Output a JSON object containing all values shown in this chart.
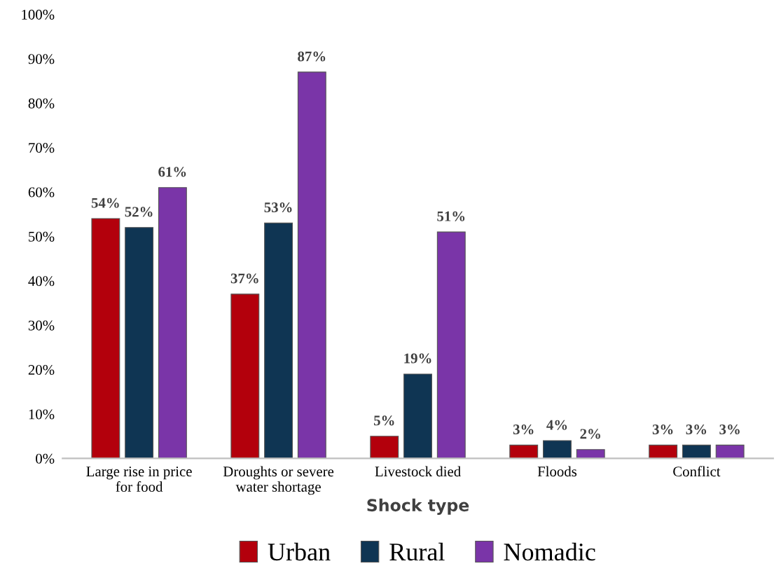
{
  "chart_data": {
    "type": "bar",
    "xlabel": "Shock type",
    "categories": [
      "Large rise in price\nfor food",
      "Droughts or severe\nwater shortage",
      "Livestock died",
      "Floods",
      "Conflict"
    ],
    "series": [
      {
        "name": "Urban",
        "color": "#b3000c",
        "values": [
          54,
          37,
          5,
          3,
          3
        ],
        "value_labels": [
          "54%",
          "37%",
          "5%",
          "3%",
          "3%"
        ]
      },
      {
        "name": "Rural",
        "color": "#0f3553",
        "values": [
          52,
          53,
          19,
          4,
          3
        ],
        "value_labels": [
          "52%",
          "53%",
          "19%",
          "4%",
          "3%"
        ]
      },
      {
        "name": "Nomadic",
        "color": "#7a35a8",
        "values": [
          61,
          87,
          51,
          2,
          3
        ],
        "value_labels": [
          "61%",
          "87%",
          "51%",
          "2%",
          "3%"
        ]
      }
    ],
    "ylim": [
      0,
      100
    ],
    "yticks": [
      {
        "value": 0,
        "label": "0%"
      },
      {
        "value": 10,
        "label": "10%"
      },
      {
        "value": 20,
        "label": "20%"
      },
      {
        "value": 30,
        "label": "30%"
      },
      {
        "value": 40,
        "label": "40%"
      },
      {
        "value": 50,
        "label": "50%"
      },
      {
        "value": 60,
        "label": "60%"
      },
      {
        "value": 70,
        "label": "70%"
      },
      {
        "value": 80,
        "label": "80%"
      },
      {
        "value": 90,
        "label": "90%"
      },
      {
        "value": 100,
        "label": "100%"
      }
    ],
    "grid": false,
    "legend": "bottom"
  }
}
